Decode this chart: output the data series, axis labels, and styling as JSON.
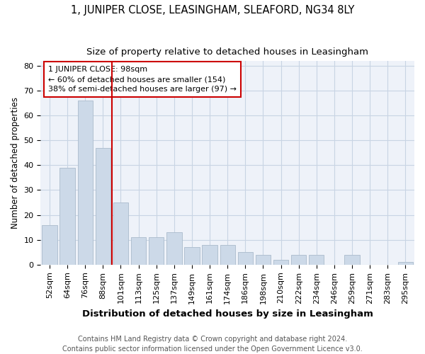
{
  "title1": "1, JUNIPER CLOSE, LEASINGHAM, SLEAFORD, NG34 8LY",
  "title2": "Size of property relative to detached houses in Leasingham",
  "xlabel": "Distribution of detached houses by size in Leasingham",
  "ylabel": "Number of detached properties",
  "categories": [
    "52sqm",
    "64sqm",
    "76sqm",
    "88sqm",
    "101sqm",
    "113sqm",
    "125sqm",
    "137sqm",
    "149sqm",
    "161sqm",
    "174sqm",
    "186sqm",
    "198sqm",
    "210sqm",
    "222sqm",
    "234sqm",
    "246sqm",
    "259sqm",
    "271sqm",
    "283sqm",
    "295sqm"
  ],
  "values": [
    16,
    39,
    66,
    47,
    25,
    11,
    11,
    13,
    7,
    8,
    8,
    5,
    4,
    2,
    4,
    4,
    0,
    4,
    0,
    0,
    1
  ],
  "bar_color": "#ccd9e8",
  "bar_edge_color": "#aabbcc",
  "vline_color": "#cc0000",
  "vline_x_idx": 4,
  "annotation_text": "1 JUNIPER CLOSE: 98sqm\n← 60% of detached houses are smaller (154)\n38% of semi-detached houses are larger (97) →",
  "annotation_box_color": "#cc0000",
  "ylim": [
    0,
    82
  ],
  "yticks": [
    0,
    10,
    20,
    30,
    40,
    50,
    60,
    70,
    80
  ],
  "grid_color": "#c8d4e4",
  "bg_color": "#eef2f9",
  "footer": "Contains HM Land Registry data © Crown copyright and database right 2024.\nContains public sector information licensed under the Open Government Licence v3.0.",
  "title1_fontsize": 10.5,
  "title2_fontsize": 9.5,
  "xlabel_fontsize": 9.5,
  "ylabel_fontsize": 8.5,
  "tick_fontsize": 8,
  "annotation_fontsize": 8,
  "footer_fontsize": 7
}
